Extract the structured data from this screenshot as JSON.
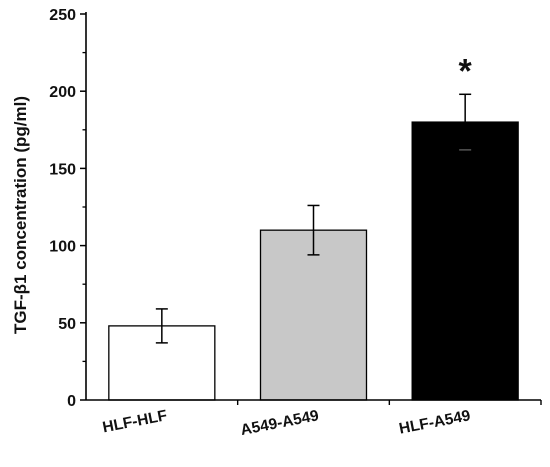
{
  "chart_data": {
    "type": "bar",
    "title": "",
    "xlabel": "",
    "ylabel": "TGF-β1 concentration (pg/ml)",
    "ylim": [
      0,
      250
    ],
    "yticks": [
      0,
      50,
      100,
      150,
      200,
      250
    ],
    "categories": [
      "HLF-HLF",
      "A549-A549",
      "HLF-A549"
    ],
    "values": [
      48,
      110,
      180
    ],
    "errors": [
      11,
      16,
      18
    ],
    "colors": [
      "#ffffff",
      "#c8c8c8",
      "#000000"
    ],
    "annotations": [
      "",
      "",
      "*"
    ],
    "grid": false,
    "legend": "none"
  }
}
